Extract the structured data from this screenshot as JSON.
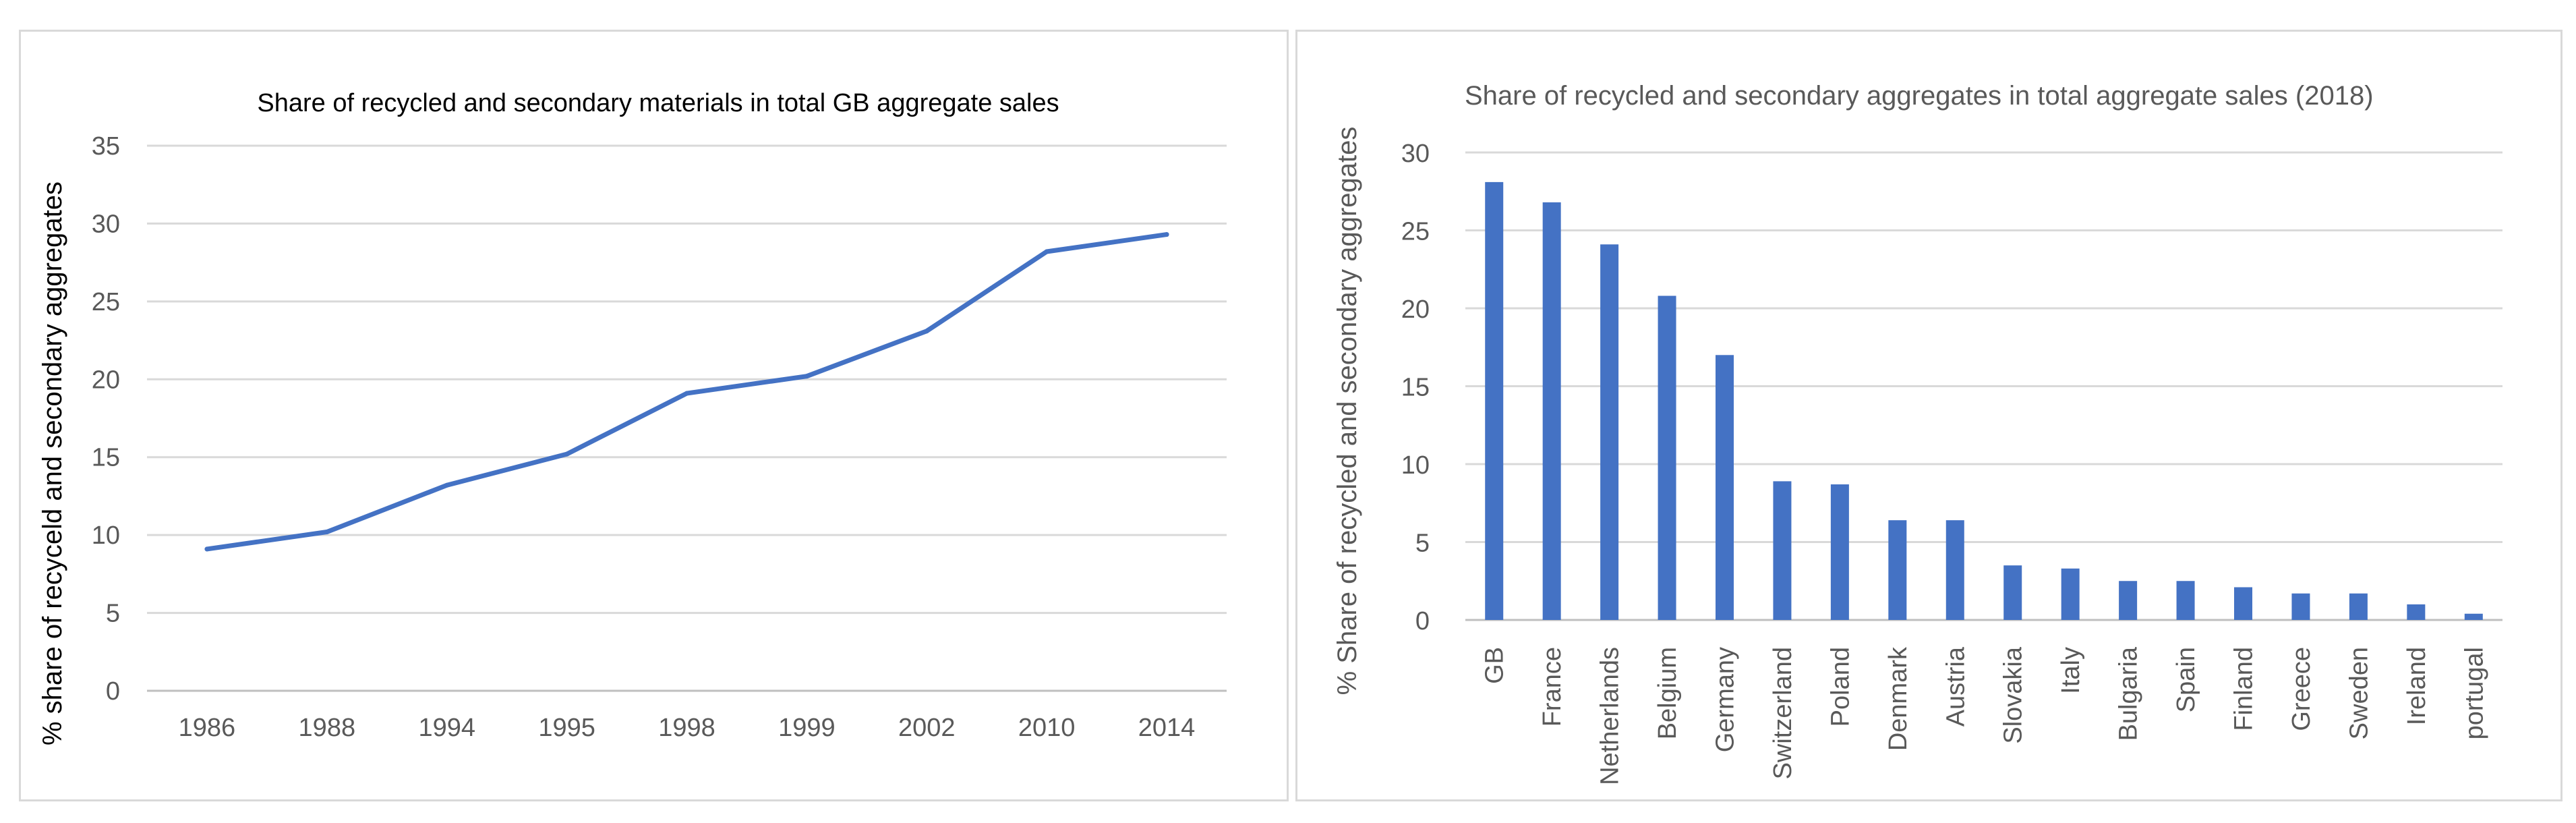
{
  "chart_data": [
    {
      "type": "line",
      "title": "Share of recycled and secondary materials in total GB aggregate sales",
      "xlabel": "",
      "ylabel": "% share of recyceld and secondary aggregates",
      "categories": [
        "1986",
        "1988",
        "1994",
        "1995",
        "1998",
        "1999",
        "2002",
        "2010",
        "2014"
      ],
      "series": [
        {
          "values": [
            9.1,
            10.2,
            13.2,
            15.2,
            19.1,
            20.2,
            23.1,
            28.2,
            29.3
          ]
        }
      ],
      "ylim": [
        0,
        35
      ],
      "yticks": [
        0,
        5,
        10,
        15,
        20,
        25,
        30,
        35
      ],
      "grid": true,
      "color": "#4472c4"
    },
    {
      "type": "bar",
      "title": "Share of recycled and secondary aggregates in total aggregate sales (2018)",
      "xlabel": "",
      "ylabel": "% Share of recycled and secondary aggregates",
      "categories": [
        "GB",
        "France",
        "Netherlands",
        "Belgium",
        "Germany",
        "Switzerland",
        "Poland",
        "Denmark",
        "Austria",
        "Slovakia",
        "Italy",
        "Bulgaria",
        "Spain",
        "Finland",
        "Greece",
        "Sweden",
        "Ireland",
        "portugal"
      ],
      "values": [
        28.1,
        26.8,
        24.1,
        20.8,
        17.0,
        8.9,
        8.7,
        6.4,
        6.4,
        3.5,
        3.3,
        2.5,
        2.5,
        2.1,
        1.7,
        1.7,
        1.0,
        0.4
      ],
      "ylim": [
        0,
        30
      ],
      "yticks": [
        0,
        5,
        10,
        15,
        20,
        25,
        30
      ],
      "grid": true,
      "color": "#4472c4"
    }
  ]
}
